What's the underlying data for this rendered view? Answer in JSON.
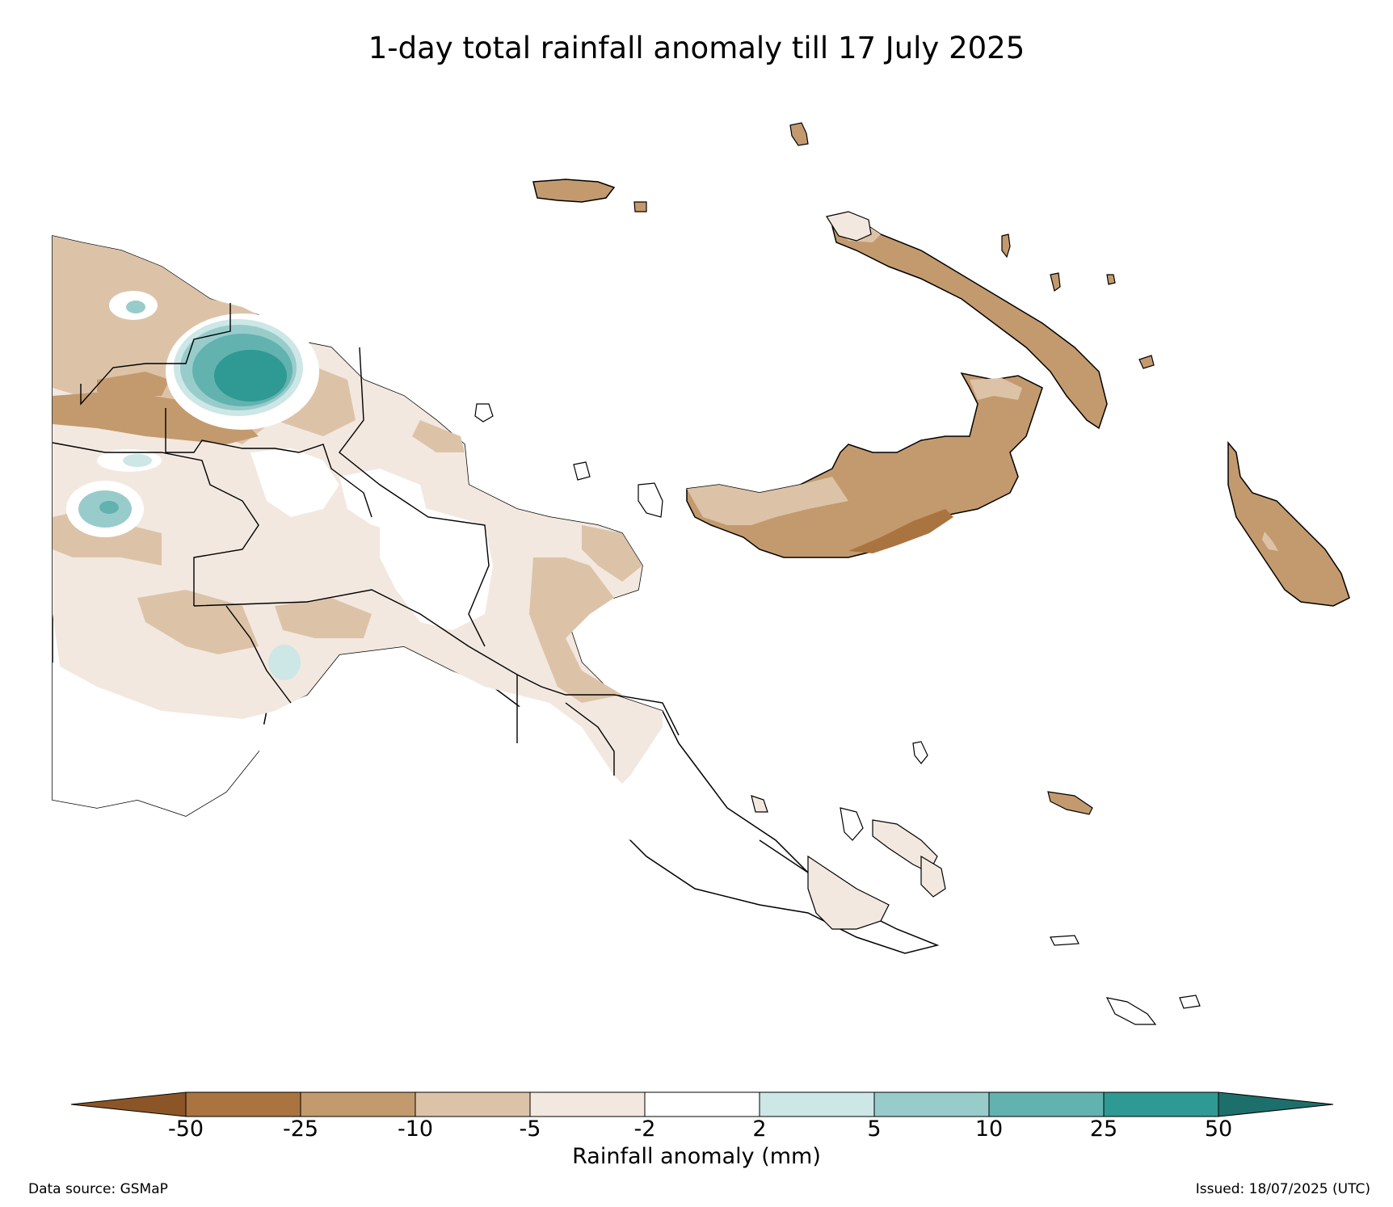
{
  "title": "1-day total rainfall anomaly till 17 July 2025",
  "colorbar": {
    "label": "Rainfall anomaly (mm)",
    "ticks": [
      "-50",
      "-25",
      "-10",
      "-5",
      "-2",
      "2",
      "5",
      "10",
      "25",
      "50"
    ],
    "colors": [
      "#8c5527",
      "#aa7440",
      "#c39a6e",
      "#dcc3a8",
      "#f2e8df",
      "#ffffff",
      "#cde6e6",
      "#98cccb",
      "#62b2b0",
      "#2f9993",
      "#1d6f6c"
    ]
  },
  "footer": {
    "source": "Data source: GSMaP",
    "issued": "Issued: 18/07/2025 (UTC)"
  },
  "map_colors": {
    "minus_25": "#aa7440",
    "minus_10": "#c39a6e",
    "minus_5": "#dcc3a8",
    "minus_2": "#f2e8df",
    "neutral": "#ffffff",
    "plus_2": "#cde6e6",
    "plus_5": "#98cccb",
    "plus_10": "#62b2b0",
    "plus_25": "#2f9993"
  }
}
